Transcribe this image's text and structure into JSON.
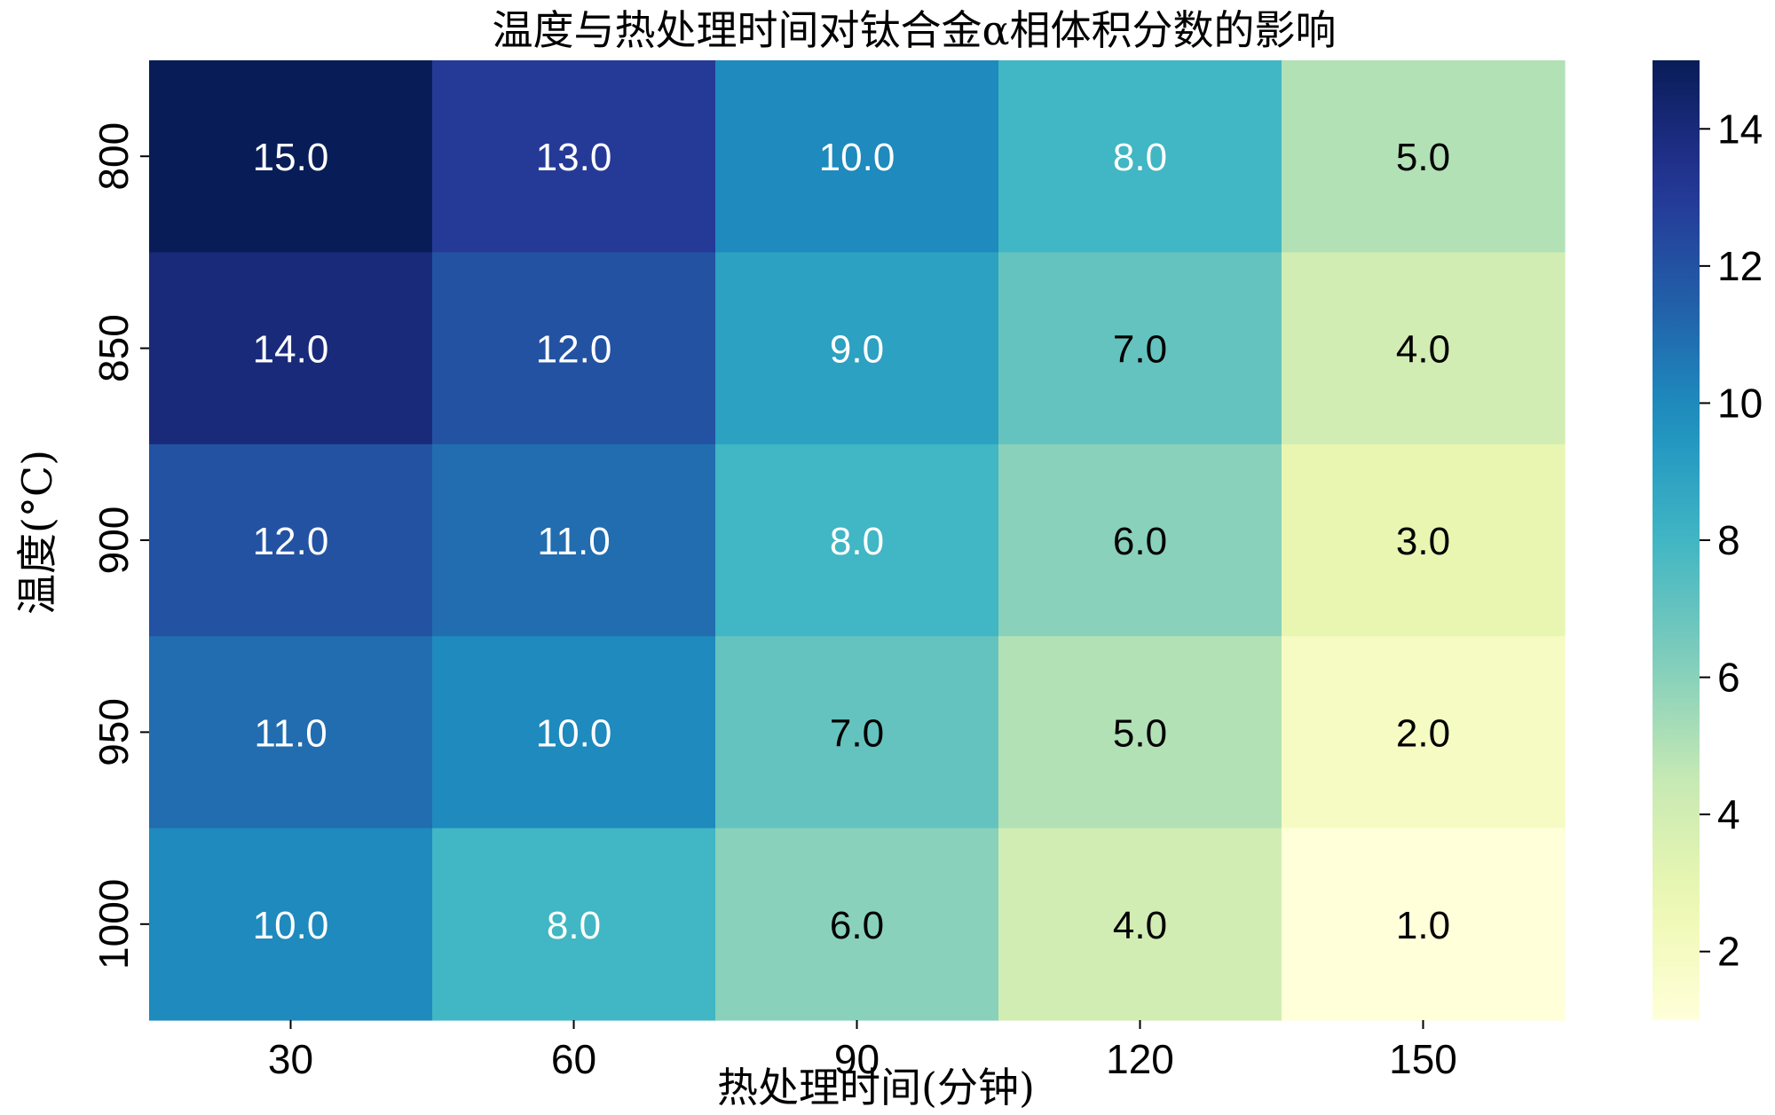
{
  "chart_data": {
    "type": "heatmap",
    "title": "温度与热处理时间对钛合金α相体积分数的影响",
    "xlabel": "热处理时间(分钟)",
    "ylabel": "温度(°C)",
    "x_categories": [
      "30",
      "60",
      "90",
      "120",
      "150"
    ],
    "y_categories": [
      "800",
      "850",
      "900",
      "950",
      "1000"
    ],
    "values": [
      [
        15.0,
        13.0,
        10.0,
        8.0,
        5.0
      ],
      [
        14.0,
        12.0,
        9.0,
        7.0,
        4.0
      ],
      [
        12.0,
        11.0,
        8.0,
        6.0,
        3.0
      ],
      [
        11.0,
        10.0,
        7.0,
        5.0,
        2.0
      ],
      [
        10.0,
        8.0,
        6.0,
        4.0,
        1.0
      ]
    ],
    "value_format": "0.1f",
    "colormap": "YlGnBu",
    "colorbar": {
      "range": [
        1,
        15
      ],
      "ticks": [
        2,
        4,
        6,
        8,
        10,
        12,
        14
      ]
    }
  }
}
